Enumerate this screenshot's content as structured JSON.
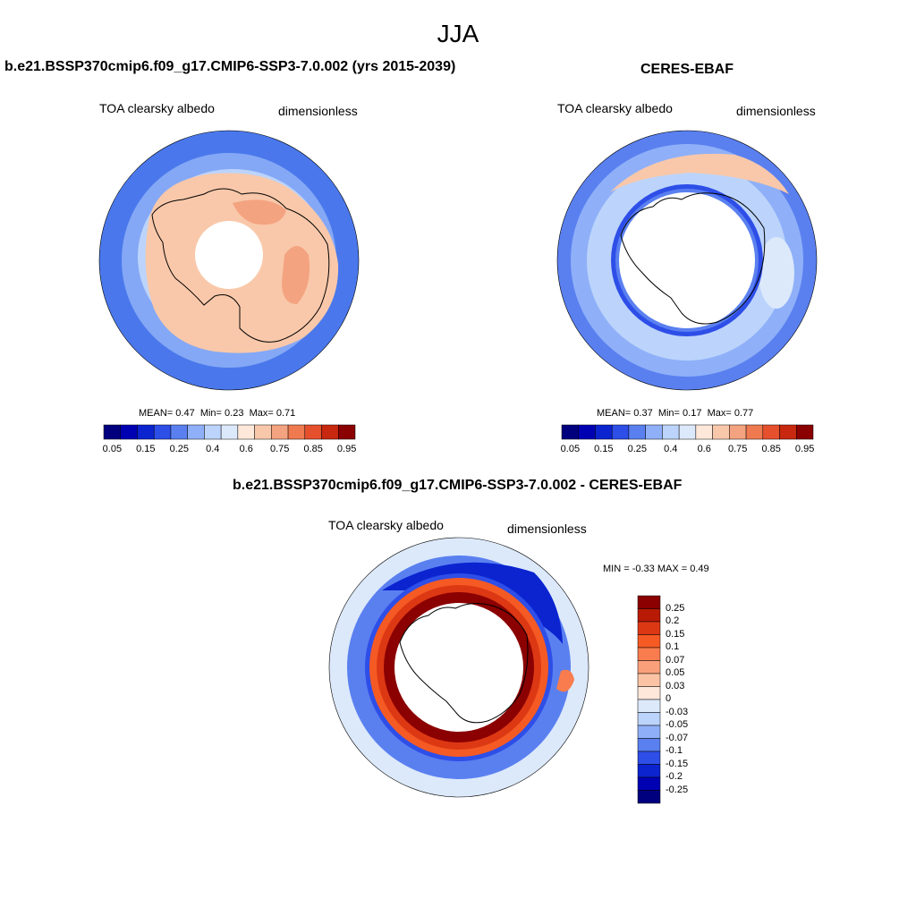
{
  "figure": {
    "title": "JJA"
  },
  "panels": [
    {
      "title": "b.e21.BSSP370cmip6.f09_g17.CMIP6-SSP3-7.0.002 (yrs 2015-2039)",
      "left_label": "TOA clearsky albedo",
      "right_label": "dimensionless",
      "stats": {
        "mean_label": "MEAN=",
        "mean": "0.47",
        "min_label": "Min=",
        "min": "0.23",
        "max_label": "Max=",
        "max": "0.71"
      }
    },
    {
      "title": "CERES-EBAF",
      "left_label": "TOA clearsky albedo",
      "right_label": "dimensionless",
      "stats": {
        "mean_label": "MEAN=",
        "mean": "0.37",
        "min_label": "Min=",
        "min": "0.17",
        "max_label": "Max=",
        "max": "0.77"
      }
    },
    {
      "title": "b.e21.BSSP370cmip6.f09_g17.CMIP6-SSP3-7.0.002 - CERES-EBAF",
      "left_label": "TOA clearsky albedo",
      "right_label": "dimensionless",
      "stats_text": "MIN =  -0.33 MAX =   0.49"
    }
  ],
  "colorbar_main": {
    "colors": [
      "#00007f",
      "#0000b3",
      "#0b24d0",
      "#2e4ee8",
      "#5a80f0",
      "#8fb0f8",
      "#bcd4fb",
      "#dce9fb",
      "#fde8da",
      "#f9c8aa",
      "#f4a380",
      "#ef7a50",
      "#e6502d",
      "#c8280f",
      "#8b0000"
    ],
    "tick_labels": [
      "0.05",
      "0.15",
      "0.25",
      "0.4",
      "0.6",
      "0.75",
      "0.85",
      "0.95"
    ]
  },
  "colorbar_diff": {
    "colors": [
      "#8b0000",
      "#b81a05",
      "#dd3814",
      "#f55a24",
      "#f87c4e",
      "#f9a07a",
      "#fbc3a4",
      "#fde8da",
      "#dce9fb",
      "#bcd4fb",
      "#8fb0f8",
      "#5a80f0",
      "#2e4ee8",
      "#0b24d0",
      "#0000b3",
      "#00007f"
    ],
    "tick_labels": [
      "0.25",
      "0.2",
      "0.15",
      "0.1",
      "0.07",
      "0.05",
      "0.03",
      "0",
      "-0.03",
      "-0.05",
      "-0.07",
      "-0.1",
      "-0.15",
      "-0.2",
      "-0.25"
    ]
  },
  "chart_data": [
    {
      "type": "heatmap",
      "title": "b.e21.BSSP370cmip6.f09_g17.CMIP6-SSP3-7.0.002 (yrs 2015-2039)",
      "variable": "TOA clearsky albedo",
      "units": "dimensionless",
      "projection": "south polar stereographic",
      "mean": 0.47,
      "min": 0.23,
      "max": 0.71
    },
    {
      "type": "heatmap",
      "title": "CERES-EBAF",
      "variable": "TOA clearsky albedo",
      "units": "dimensionless",
      "projection": "south polar stereographic",
      "mean": 0.37,
      "min": 0.17,
      "max": 0.77
    },
    {
      "type": "heatmap",
      "title": "b.e21.BSSP370cmip6.f09_g17.CMIP6-SSP3-7.0.002 - CERES-EBAF",
      "variable": "TOA clearsky albedo",
      "units": "dimensionless",
      "projection": "south polar stereographic",
      "min": -0.33,
      "max": 0.49
    }
  ]
}
